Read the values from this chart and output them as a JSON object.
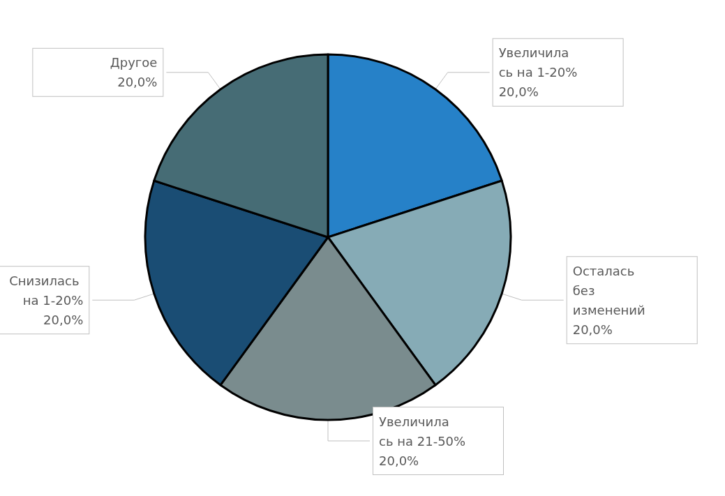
{
  "chart_data": {
    "type": "pie",
    "categories": [
      "Увеличилась на 1-20%",
      "Осталась без изменений",
      "Увеличилась на 21-50%",
      "Снизилась на 1-20%",
      "Другое"
    ],
    "values": [
      20,
      20,
      20,
      20,
      20
    ],
    "value_labels": [
      "20,0%",
      "20,0%",
      "20,0%",
      "20,0%",
      "20,0%"
    ],
    "colors": [
      "#2681c8",
      "#86abb6",
      "#7a8c8e",
      "#1a4d74",
      "#466c75"
    ],
    "legend": false
  }
}
